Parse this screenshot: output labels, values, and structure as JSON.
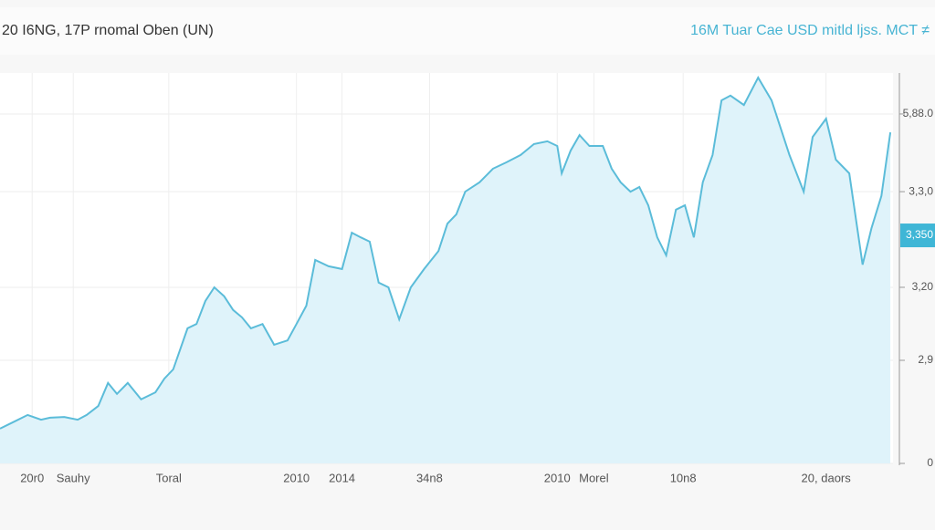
{
  "chart_data": {
    "type": "area",
    "title": "20 I6NG, 17P rnomal Oben (UN)",
    "subtitle": "16M Tuar Cae USD mitld ljss. MCT ≠",
    "color": "#5bbcd9",
    "fill": "#dff3fa",
    "grid": true,
    "x": [
      0,
      1.6,
      3.1,
      4.6,
      5.6,
      7.2,
      8.7,
      9.7,
      11.0,
      12.1,
      13.1,
      14.3,
      15.8,
      17.4,
      18.4,
      19.4,
      21.0,
      22.0,
      23.0,
      24.0,
      25.1,
      26.1,
      27.1,
      28.1,
      29.4,
      30.7,
      32.2,
      33.2,
      34.3,
      35.3,
      36.8,
      38.3,
      39.4,
      40.4,
      41.4,
      42.4,
      43.5,
      44.7,
      46.0,
      47.5,
      49.1,
      50.1,
      51.1,
      52.1,
      53.7,
      55.2,
      56.7,
      58.3,
      59.8,
      61.3,
      62.4,
      62.9,
      63.9,
      64.9,
      66.0,
      67.5,
      68.5,
      69.5,
      70.6,
      71.6,
      72.6,
      73.6,
      74.6,
      75.7,
      76.7,
      77.7,
      78.7,
      79.8,
      80.8,
      81.8,
      83.3,
      84.9,
      86.4,
      87.4,
      88.4,
      90.0,
      91.0,
      92.5,
      93.6,
      95.1,
      96.6,
      97.6,
      98.7,
      99.7
    ],
    "values": [
      8.9,
      10.7,
      12.4,
      11.2,
      11.7,
      11.9,
      11.2,
      12.4,
      14.7,
      20.6,
      17.8,
      20.6,
      16.4,
      18.2,
      21.7,
      24.1,
      34.6,
      35.7,
      41.6,
      45.1,
      42.8,
      39.3,
      37.4,
      34.6,
      35.7,
      30.4,
      31.5,
      35.7,
      40.4,
      52.1,
      50.5,
      49.8,
      59.1,
      57.9,
      56.8,
      46.3,
      45.1,
      36.9,
      45.1,
      49.8,
      54.4,
      61.4,
      63.8,
      69.6,
      72.0,
      75.5,
      77.1,
      79.0,
      81.8,
      82.5,
      81.3,
      74.3,
      80.1,
      84.1,
      81.3,
      81.3,
      75.5,
      72.0,
      69.6,
      70.8,
      66.1,
      57.9,
      53.3,
      65.0,
      66.1,
      57.9,
      72.0,
      79.0,
      93.0,
      94.2,
      91.8,
      98.8,
      93.0,
      86.0,
      79.0,
      69.6,
      83.6,
      88.3,
      77.8,
      74.3,
      50.9,
      60.3,
      68.5,
      84.8
    ],
    "xlim": [
      0,
      100
    ],
    "ylim": [
      0,
      100
    ],
    "xticks": [
      {
        "value": 3.6,
        "label": "20r0"
      },
      {
        "value": 8.2,
        "label": "Sauhy"
      },
      {
        "value": 18.9,
        "label": "Toral"
      },
      {
        "value": 33.2,
        "label": "2010"
      },
      {
        "value": 38.3,
        "label": "2014"
      },
      {
        "value": 48.1,
        "label": "34n8"
      },
      {
        "value": 62.4,
        "label": "2010"
      },
      {
        "value": 66.5,
        "label": "Morel"
      },
      {
        "value": 76.5,
        "label": "10n8"
      },
      {
        "value": 92.5,
        "label": "20, daors"
      }
    ],
    "yticks": [
      0,
      {
        "value": 26.4,
        "label": "2,9"
      },
      {
        "value": 45.1,
        "label": "3,20"
      },
      {
        "value": 69.6,
        "label": "3,3,0"
      },
      {
        "value": 89.5,
        "label": "5,88.0"
      }
    ],
    "marker": {
      "value": 58.4,
      "label": "3,350"
    }
  }
}
